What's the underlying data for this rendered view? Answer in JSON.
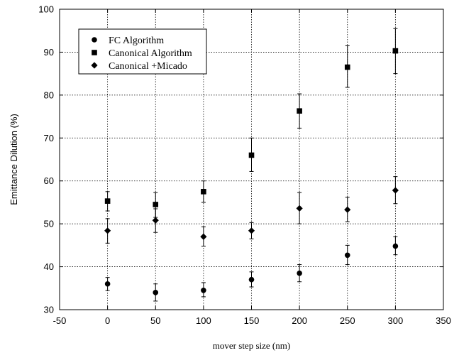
{
  "chart_data": {
    "type": "scatter",
    "title": "",
    "xlabel": "mover step size (nm)",
    "ylabel": "Emittance Dilution (%)",
    "xlim": [
      -50,
      350
    ],
    "ylim": [
      30,
      100
    ],
    "xticks": [
      "-50",
      "0",
      "50",
      "100",
      "150",
      "200",
      "250",
      "300",
      "350"
    ],
    "yticks": [
      "30",
      "40",
      "50",
      "60",
      "70",
      "80",
      "90",
      "100"
    ],
    "grid": true,
    "legend_position": "top-left",
    "x": [
      0,
      50,
      100,
      150,
      200,
      250,
      300
    ],
    "series": [
      {
        "name": "FC Algorithm",
        "marker": "circle",
        "values": [
          36.0,
          34.0,
          34.5,
          37.0,
          38.5,
          42.7,
          44.8
        ],
        "err_low": [
          34.5,
          32.0,
          33.0,
          35.3,
          36.5,
          40.5,
          42.8
        ],
        "err_high": [
          37.5,
          36.0,
          36.3,
          38.8,
          40.5,
          45.0,
          47.0
        ]
      },
      {
        "name": "Canonical Algorithm",
        "marker": "square",
        "values": [
          55.3,
          54.5,
          57.5,
          66.0,
          76.3,
          86.5,
          90.3
        ],
        "err_low": [
          53.0,
          51.5,
          55.0,
          62.2,
          72.3,
          81.8,
          85.0
        ],
        "err_high": [
          57.5,
          57.3,
          60.0,
          70.0,
          80.3,
          91.5,
          95.5
        ]
      },
      {
        "name": "Canonical +Micado",
        "marker": "diamond",
        "values": [
          48.4,
          50.8,
          47.0,
          48.4,
          53.6,
          53.3,
          57.8
        ],
        "err_low": [
          45.5,
          48.0,
          44.8,
          46.5,
          50.0,
          50.5,
          54.7
        ],
        "err_high": [
          51.2,
          53.5,
          49.3,
          50.3,
          57.3,
          56.2,
          61.0
        ]
      }
    ]
  }
}
